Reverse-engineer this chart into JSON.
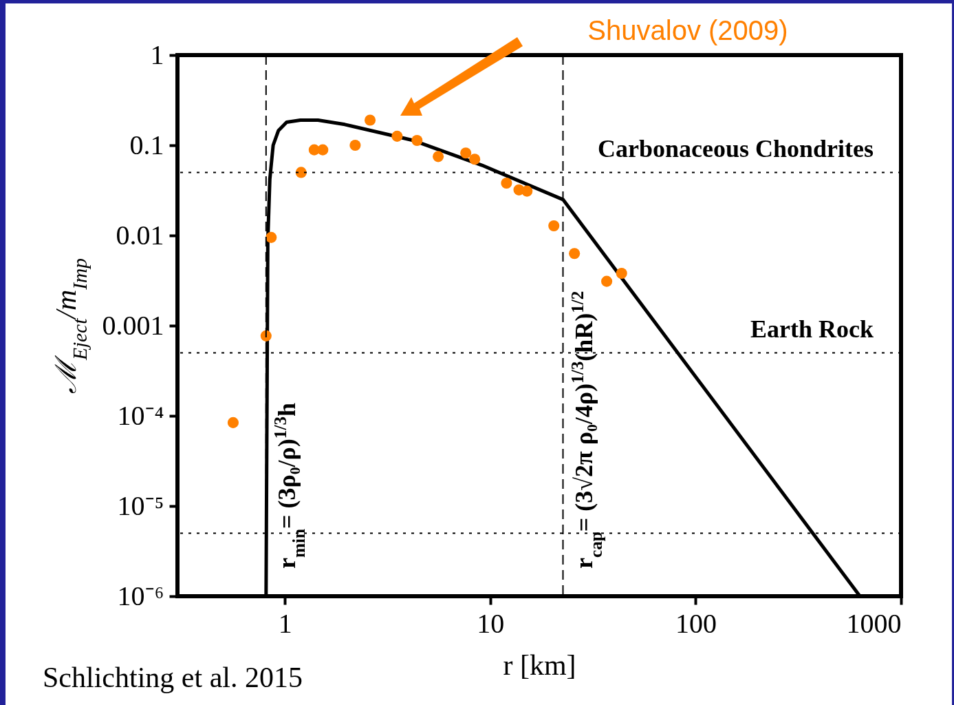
{
  "chart_data": {
    "type": "scatter",
    "xlabel": "r [km]",
    "ylabel": "ℳ$_{Eject}$/m$_{Imp}$",
    "log": "xy",
    "xlim": [
      0.3,
      1000
    ],
    "xticks": [
      1,
      10,
      100,
      1000
    ],
    "ylim": [
      1e-06,
      1
    ],
    "yticks": [
      1,
      0.1,
      0.01,
      0.001,
      {
        "value": 0.0001,
        "label": "10⁻⁴"
      },
      {
        "value": 1e-05,
        "label": "10⁻⁵"
      },
      {
        "value": 1e-06,
        "label": "10⁻⁶"
      }
    ],
    "grid": false,
    "series": [
      {
        "type": "line",
        "color": "#000000",
        "line_style": "solid",
        "x": [
          0.81,
          0.826,
          0.845,
          0.877,
          0.93,
          1.02,
          1.19,
          1.45,
          1.96,
          4.23,
          9.12,
          22.6,
          631
        ],
        "values": [
          1e-06,
          0.0087,
          0.042,
          0.1,
          0.145,
          0.18,
          0.19,
          0.19,
          0.17,
          0.113,
          0.06,
          0.025,
          1e-06
        ]
      },
      {
        "marker": "circle",
        "color": "#ff8000",
        "x": [
          0.56,
          0.81,
          0.858,
          1.2,
          1.39,
          1.53,
          2.2,
          2.6,
          3.52,
          4.4,
          5.58,
          7.6,
          8.4,
          12.0,
          13.8,
          15.1,
          20.4,
          25.7,
          36.9,
          43.6
        ],
        "values": [
          8.4e-05,
          0.00077,
          0.0095,
          0.05,
          0.089,
          0.089,
          0.1,
          0.19,
          0.126,
          0.113,
          0.075,
          0.082,
          0.07,
          0.038,
          0.032,
          0.031,
          0.0128,
          0.0063,
          0.0031,
          0.0038
        ]
      }
    ],
    "ref_lines": [
      {
        "axis": "x",
        "value": 0.81,
        "label": "r$_{min}$= (3ρ₀/ρ)$^{1/3}$h",
        "line_style": "dashed",
        "color": "#000000"
      },
      {
        "axis": "x",
        "value": 22.6,
        "label": "r$_{cap}$= (3√2π ρ₀/4ρ)$^{1/3}$(hR)$^{1/2}$",
        "line_style": "dashed",
        "color": "#000000"
      },
      {
        "axis": "y",
        "value": 0.05,
        "label": "Carbonaceous Chondrites",
        "line_style": "dotted",
        "color": "#000000"
      },
      {
        "axis": "y",
        "value": 0.0005,
        "label": "Earth Rock",
        "line_style": "dotted",
        "color": "#000000"
      },
      {
        "axis": "y",
        "value": 5e-06,
        "line_style": "dotted",
        "color": "#000000"
      }
    ],
    "annotations": [
      "Shuvalov (2009)",
      "Schlichting et al. 2015"
    ]
  }
}
